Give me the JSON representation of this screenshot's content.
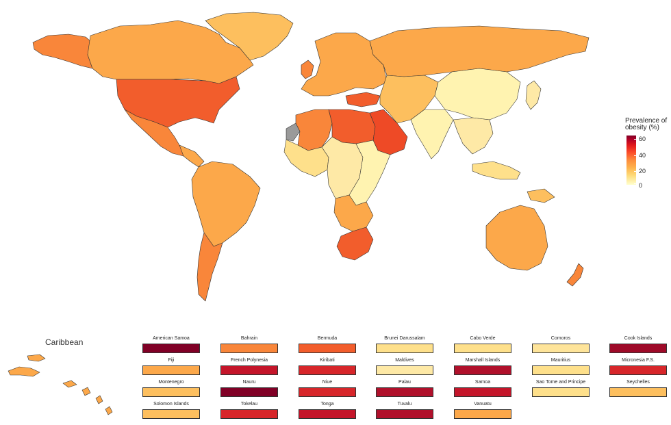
{
  "legend": {
    "title_line1": "Prevalence of",
    "title_line2": "obesity (%)",
    "ticks": [
      "60",
      "40",
      "20",
      "0"
    ]
  },
  "colors": {
    "very_low": "#fff3b0",
    "low": "#fee08b",
    "mid_low": "#fdbf5e",
    "mid": "#fca84a",
    "mid_high": "#f9863a",
    "high": "#f25d2c",
    "very_high": "#d7262a",
    "extreme": "#b0102b",
    "max": "#800026",
    "no_data": "#9a9a9a"
  },
  "inset": {
    "title": "Caribbean"
  },
  "small_states": [
    {
      "name": "American Samoa",
      "color": "#800026"
    },
    {
      "name": "Bahrain",
      "color": "#f9863a"
    },
    {
      "name": "Bermuda",
      "color": "#f25d2c"
    },
    {
      "name": "Brunei Darussalam",
      "color": "#fee08b"
    },
    {
      "name": "Cabo Verde",
      "color": "#fee08b"
    },
    {
      "name": "Comoros",
      "color": "#fee49a"
    },
    {
      "name": "Cook Islands",
      "color": "#9e0a28"
    },
    {
      "name": "Fiji",
      "color": "#fca84a"
    },
    {
      "name": "French Polynesia",
      "color": "#c4152a"
    },
    {
      "name": "Kiribati",
      "color": "#d7262a"
    },
    {
      "name": "Maldives",
      "color": "#fee9a6"
    },
    {
      "name": "Marshall Islands",
      "color": "#b0102b"
    },
    {
      "name": "Mauritius",
      "color": "#fee08b"
    },
    {
      "name": "Micronesia F.S.",
      "color": "#d7262a"
    },
    {
      "name": "Montenegro",
      "color": "#fdbf5e"
    },
    {
      "name": "Nauru",
      "color": "#800026"
    },
    {
      "name": "Niue",
      "color": "#d7262a"
    },
    {
      "name": "Palau",
      "color": "#b0102b"
    },
    {
      "name": "Samoa",
      "color": "#c4152a"
    },
    {
      "name": "Sao Tome and Principe",
      "color": "#fee08b"
    },
    {
      "name": "Seychelles",
      "color": "#fdbf5e"
    },
    {
      "name": "Solomon Islands",
      "color": "#fdbf5e"
    },
    {
      "name": "Tokelau",
      "color": "#d7262a"
    },
    {
      "name": "Tonga",
      "color": "#c4152a"
    },
    {
      "name": "Tuvalu",
      "color": "#b0102b"
    },
    {
      "name": "Vanuatu",
      "color": "#fca84a"
    }
  ],
  "regions": [
    {
      "name": "canada",
      "color": "#fca84a"
    },
    {
      "name": "alaska",
      "color": "#f9863a"
    },
    {
      "name": "greenland",
      "color": "#fdbf5e"
    },
    {
      "name": "usa",
      "color": "#f25d2c"
    },
    {
      "name": "mexico",
      "color": "#f9863a"
    },
    {
      "name": "central-america",
      "color": "#fca84a"
    },
    {
      "name": "south-america",
      "color": "#fca84a"
    },
    {
      "name": "argentina",
      "color": "#f9863a"
    },
    {
      "name": "europe",
      "color": "#fca84a"
    },
    {
      "name": "uk",
      "color": "#f9863a"
    },
    {
      "name": "russia",
      "color": "#fca84a"
    },
    {
      "name": "north-africa",
      "color": "#f9863a"
    },
    {
      "name": "libya-egypt",
      "color": "#f25d2c"
    },
    {
      "name": "western-sahara",
      "color": "#9a9a9a"
    },
    {
      "name": "west-africa",
      "color": "#fee08b"
    },
    {
      "name": "central-africa",
      "color": "#fee9a6"
    },
    {
      "name": "east-africa",
      "color": "#fff3b0"
    },
    {
      "name": "southern-africa",
      "color": "#fca84a"
    },
    {
      "name": "south-africa",
      "color": "#f25d2c"
    },
    {
      "name": "turkey",
      "color": "#f25d2c"
    },
    {
      "name": "arabia",
      "color": "#ee4a26"
    },
    {
      "name": "iran-central-asia",
      "color": "#fdbf5e"
    },
    {
      "name": "south-asia",
      "color": "#fff3b0"
    },
    {
      "name": "china",
      "color": "#fff3b0"
    },
    {
      "name": "southeast-asia",
      "color": "#fee9a6"
    },
    {
      "name": "japan-korea",
      "color": "#fee9a6"
    },
    {
      "name": "indonesia",
      "color": "#fee08b"
    },
    {
      "name": "png",
      "color": "#fdbf5e"
    },
    {
      "name": "australia",
      "color": "#fca84a"
    },
    {
      "name": "new-zealand",
      "color": "#f9863a"
    },
    {
      "name": "caribbean-inset",
      "color": "#fca84a"
    }
  ]
}
